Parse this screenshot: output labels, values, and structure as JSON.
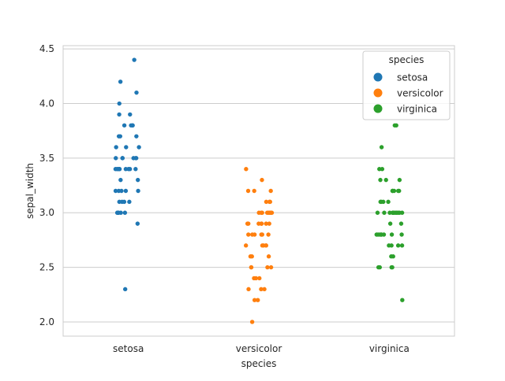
{
  "chart_data": {
    "type": "scatter",
    "subtype": "strip",
    "xlabel": "species",
    "ylabel": "sepal_width",
    "categories": [
      "setosa",
      "versicolor",
      "virginica"
    ],
    "ylim": [
      1.87,
      4.53
    ],
    "yticks": [
      2.0,
      2.5,
      3.0,
      3.5,
      4.0,
      4.5
    ],
    "ytick_labels": [
      "2.0",
      "2.5",
      "3.0",
      "3.5",
      "4.0",
      "4.5"
    ],
    "grid": "y-only",
    "legend": {
      "title": "species",
      "placement": "top-right",
      "entries": [
        "setosa",
        "versicolor",
        "virginica"
      ]
    },
    "series": [
      {
        "name": "setosa",
        "color": "#1f77b4",
        "values": [
          3.5,
          3.0,
          3.2,
          3.1,
          3.6,
          3.9,
          3.4,
          3.4,
          2.9,
          3.1,
          3.7,
          3.4,
          3.0,
          3.0,
          4.0,
          4.4,
          3.9,
          3.5,
          3.8,
          3.8,
          3.4,
          3.7,
          3.6,
          3.3,
          3.4,
          3.0,
          3.4,
          3.5,
          3.4,
          3.2,
          3.1,
          3.4,
          4.1,
          4.2,
          3.1,
          3.2,
          3.5,
          3.6,
          3.0,
          3.4,
          3.5,
          2.3,
          3.2,
          3.5,
          3.8,
          3.0,
          3.8,
          3.2,
          3.7,
          3.3
        ]
      },
      {
        "name": "versicolor",
        "color": "#ff7f0e",
        "values": [
          3.2,
          3.2,
          3.1,
          2.3,
          2.8,
          2.8,
          3.3,
          2.4,
          2.9,
          2.7,
          2.0,
          3.0,
          2.2,
          2.9,
          2.9,
          3.1,
          3.0,
          2.7,
          2.2,
          2.5,
          3.2,
          2.8,
          2.5,
          2.8,
          2.9,
          3.0,
          2.8,
          3.0,
          2.9,
          2.6,
          2.4,
          2.4,
          2.7,
          2.7,
          3.0,
          3.4,
          3.1,
          2.3,
          3.0,
          2.5,
          2.6,
          3.0,
          2.6,
          2.3,
          2.7,
          3.0,
          2.9,
          2.9,
          2.5,
          2.8
        ]
      },
      {
        "name": "virginica",
        "color": "#2ca02c",
        "values": [
          3.3,
          2.7,
          3.0,
          2.9,
          3.0,
          3.0,
          2.5,
          2.9,
          2.5,
          3.6,
          3.2,
          2.7,
          3.0,
          2.5,
          2.8,
          3.2,
          3.0,
          3.8,
          2.6,
          2.2,
          3.2,
          2.8,
          2.8,
          2.7,
          3.3,
          3.2,
          2.8,
          3.0,
          2.8,
          3.0,
          2.8,
          3.8,
          2.8,
          2.8,
          2.6,
          3.0,
          3.4,
          3.1,
          3.0,
          3.1,
          3.1,
          3.1,
          2.7,
          3.2,
          3.3,
          3.0,
          2.5,
          3.0,
          3.4,
          3.0
        ]
      }
    ]
  }
}
